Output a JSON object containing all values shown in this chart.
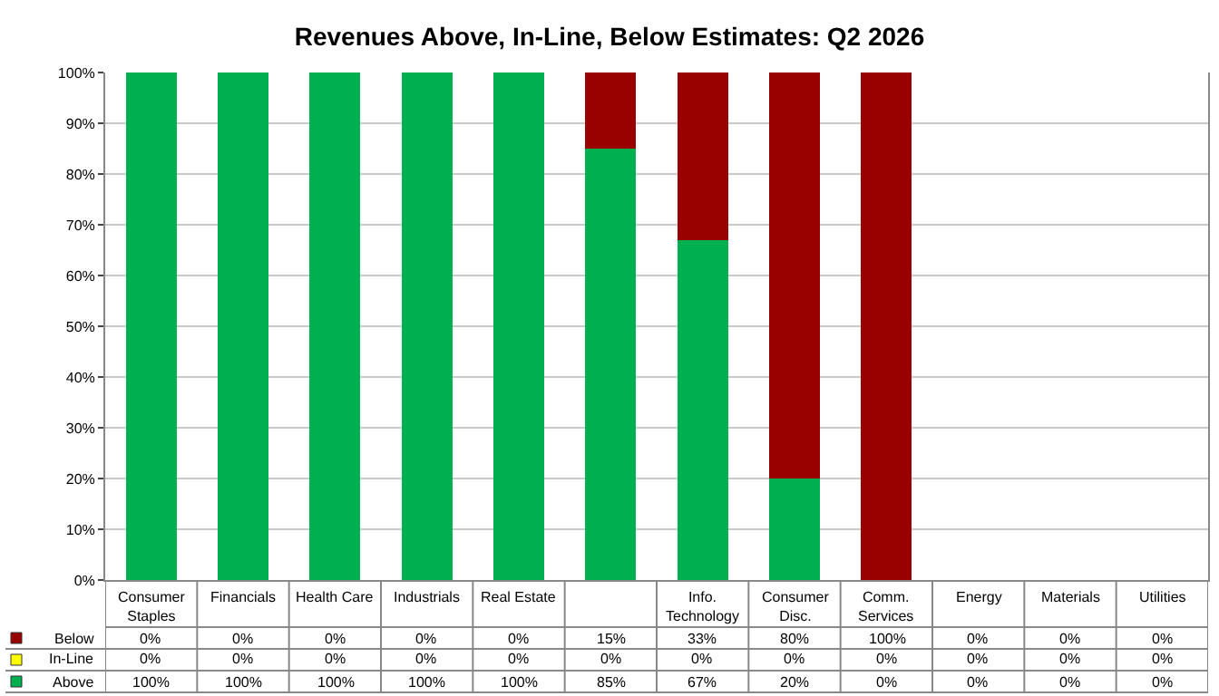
{
  "chart_data": {
    "type": "bar",
    "title": "Revenues Above, In-Line, Below Estimates: Q2 2026",
    "categories": [
      "Consumer Staples",
      "Financials",
      "Health Care",
      "Industrials",
      "Real Estate",
      null,
      "Info. Technology",
      "Consumer Disc.",
      "Comm. Services",
      "Energy",
      "Materials",
      "Utilities"
    ],
    "stacked": true,
    "series": [
      {
        "name": "Above",
        "color": "#00b050",
        "values": [
          100,
          100,
          100,
          100,
          100,
          85,
          67,
          20,
          0,
          0,
          0,
          0
        ],
        "value_labels": [
          "100%",
          "100%",
          "100%",
          "100%",
          "100%",
          "85%",
          "67%",
          "20%",
          "0%",
          "0%",
          "0%",
          "0%"
        ]
      },
      {
        "name": "In-Line",
        "color": "#ffff00",
        "values": [
          0,
          0,
          0,
          0,
          0,
          0,
          0,
          0,
          0,
          0,
          0,
          0
        ],
        "value_labels": [
          "0%",
          "0%",
          "0%",
          "0%",
          "0%",
          "0%",
          "0%",
          "0%",
          "0%",
          "0%",
          "0%",
          "0%"
        ]
      },
      {
        "name": "Below",
        "color": "#990000",
        "values": [
          0,
          0,
          0,
          0,
          0,
          15,
          33,
          80,
          100,
          0,
          0,
          0
        ],
        "value_labels": [
          "0%",
          "0%",
          "0%",
          "0%",
          "0%",
          "15%",
          "33%",
          "80%",
          "100%",
          "0%",
          "0%",
          "0%"
        ]
      }
    ],
    "ylim": [
      0,
      100
    ],
    "yticks": [
      {
        "value": 0,
        "label": "0%"
      },
      {
        "value": 10,
        "label": "10%"
      },
      {
        "value": 20,
        "label": "20%"
      },
      {
        "value": 30,
        "label": "30%"
      },
      {
        "value": 40,
        "label": "40%"
      },
      {
        "value": 50,
        "label": "50%"
      },
      {
        "value": 60,
        "label": "60%"
      },
      {
        "value": 70,
        "label": "70%"
      },
      {
        "value": 80,
        "label": "80%"
      },
      {
        "value": 90,
        "label": "90%"
      },
      {
        "value": 100,
        "label": "100%"
      }
    ],
    "grid": "y",
    "legend": "bottom left"
  }
}
